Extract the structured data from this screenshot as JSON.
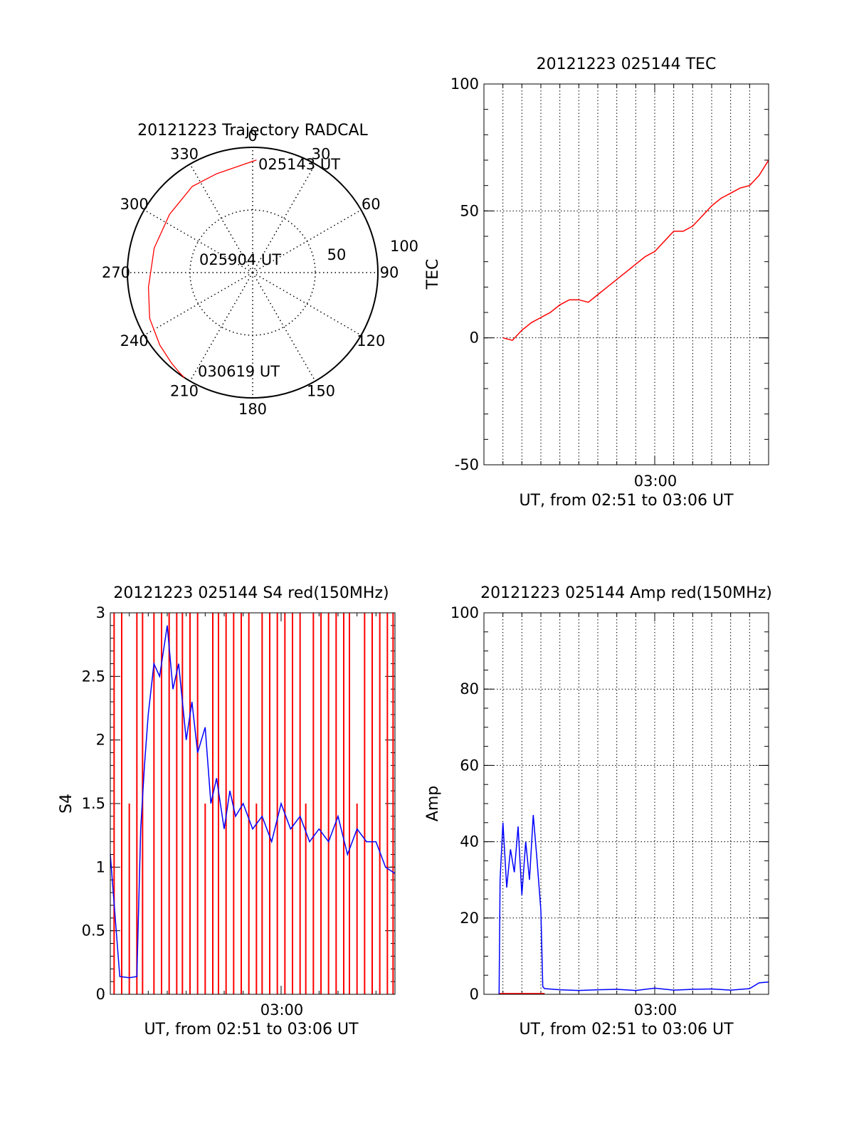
{
  "chart_data": [
    {
      "id": "trajectory",
      "type": "polar",
      "title": "20121223 Trajectory RADCAL",
      "angle_labels": [
        "0",
        "30",
        "60",
        "90",
        "120",
        "150",
        "180",
        "210",
        "240",
        "270",
        "300",
        "330"
      ],
      "radial_labels": [
        "50",
        "100"
      ],
      "r_max": 100,
      "series": [
        {
          "color": "#ff0000",
          "azimuth_deg": [
            2,
            340,
            325,
            305,
            284,
            262,
            246,
            232,
            222,
            216,
            213
          ],
          "radius": [
            90,
            84,
            84,
            81,
            81,
            84,
            90,
            94,
            97,
            99,
            100
          ]
        }
      ],
      "annotations": [
        {
          "text": "025143 UT",
          "at": "start"
        },
        {
          "text": "025904 UT",
          "at": "center"
        },
        {
          "text": "030619 UT",
          "at": "end"
        }
      ]
    },
    {
      "id": "tec",
      "type": "line",
      "title": "20121223 025144 TEC",
      "ylabel": "TEC",
      "xlabel": "UT, from 02:51 to 03:06 UT",
      "x_tick_label": "03:00",
      "ylim": [
        -50,
        100
      ],
      "y_ticks": [
        -50,
        0,
        50,
        100
      ],
      "grid": true,
      "series": [
        {
          "color": "#ff0000",
          "x_minutes": [
            1.0,
            1.5,
            2.0,
            2.5,
            3.0,
            3.5,
            4.0,
            4.5,
            5.0,
            5.5,
            6.0,
            6.5,
            7.0,
            7.5,
            8.0,
            8.5,
            9.0,
            9.5,
            10.0,
            10.5,
            11.0,
            11.5,
            12.0,
            12.5,
            13.0,
            13.5,
            14.0,
            14.5,
            15.0
          ],
          "values": [
            0,
            -1,
            3,
            6,
            8,
            10,
            13,
            15,
            15,
            14,
            17,
            20,
            23,
            26,
            29,
            32,
            34,
            38,
            42,
            42,
            44,
            48,
            52,
            55,
            57,
            59,
            60,
            64,
            70
          ]
        }
      ]
    },
    {
      "id": "s4",
      "type": "line",
      "title": "20121223 025144 S4 red(150MHz)",
      "ylabel": "S4",
      "xlabel": "UT, from 02:51 to 03:06 UT",
      "x_tick_label": "03:00",
      "ylim": [
        0,
        3
      ],
      "y_ticks": [
        "0",
        "0.5",
        "1",
        "1.5",
        "2",
        "2.5",
        "3"
      ],
      "series": [
        {
          "color": "#ff0000",
          "note_style": "dense vertical spikes",
          "x_minutes": [
            0.2,
            0.6,
            1.0,
            1.4,
            1.7,
            2.3,
            2.7,
            3.1,
            3.5,
            3.8,
            4.2,
            4.6,
            5.0,
            5.4,
            5.7,
            6.1,
            6.5,
            6.9,
            7.3,
            7.7,
            8.0,
            8.4,
            8.8,
            9.2,
            9.6,
            10.0,
            10.3,
            10.7,
            11.1,
            11.5,
            11.9,
            12.3,
            12.6,
            13.0,
            13.4,
            13.8,
            14.2,
            14.6,
            14.9
          ],
          "values": [
            3,
            3,
            1.5,
            3,
            3,
            3,
            3,
            3,
            3,
            3,
            3,
            3,
            1.5,
            3,
            3,
            3,
            3,
            3,
            3,
            1.5,
            3,
            3,
            3,
            3,
            3,
            3,
            1.5,
            3,
            3,
            3,
            3,
            3,
            3,
            1.5,
            3,
            3,
            3,
            3,
            3
          ]
        },
        {
          "color": "#0000ff",
          "x_minutes": [
            0.0,
            0.5,
            1.0,
            1.4,
            1.6,
            1.8,
            2.0,
            2.3,
            2.6,
            3.0,
            3.3,
            3.6,
            4.0,
            4.3,
            4.6,
            5.0,
            5.3,
            5.6,
            6.0,
            6.3,
            6.6,
            7.0,
            7.5,
            8.0,
            8.5,
            9.0,
            9.5,
            10.0,
            10.5,
            11.0,
            11.5,
            12.0,
            12.5,
            13.0,
            13.5,
            14.0,
            14.5,
            15.0
          ],
          "values": [
            1.1,
            0.14,
            0.13,
            0.14,
            1.3,
            1.8,
            2.2,
            2.6,
            2.5,
            2.9,
            2.4,
            2.6,
            2.0,
            2.3,
            1.9,
            2.1,
            1.5,
            1.7,
            1.3,
            1.6,
            1.4,
            1.5,
            1.3,
            1.4,
            1.2,
            1.5,
            1.3,
            1.4,
            1.2,
            1.3,
            1.2,
            1.4,
            1.1,
            1.3,
            1.2,
            1.2,
            1.0,
            0.95
          ]
        }
      ]
    },
    {
      "id": "amp",
      "type": "line",
      "title": "20121223 025144 Amp red(150MHz)",
      "ylabel": "Amp",
      "xlabel": "UT, from 02:51 to 03:06 UT",
      "x_tick_label": "03:00",
      "ylim": [
        0,
        100
      ],
      "y_ticks": [
        0,
        20,
        40,
        60,
        80,
        100
      ],
      "grid": true,
      "series": [
        {
          "color": "#0000ff",
          "x_minutes": [
            0.8,
            0.85,
            1.0,
            1.2,
            1.4,
            1.6,
            1.8,
            2.0,
            2.2,
            2.4,
            2.6,
            2.8,
            3.0,
            3.1,
            3.2,
            4.0,
            5.0,
            6.0,
            7.0,
            8.0,
            9.0,
            10.0,
            11.0,
            12.0,
            13.0,
            14.0,
            14.5,
            15.0
          ],
          "values": [
            0,
            30,
            45,
            28,
            38,
            32,
            44,
            26,
            40,
            30,
            47,
            35,
            22,
            2,
            1.5,
            1.2,
            1.0,
            1.2,
            1.3,
            1.0,
            1.6,
            1.1,
            1.3,
            1.4,
            1.1,
            1.5,
            3.0,
            3.2
          ]
        },
        {
          "color": "#ff0000",
          "x_minutes": [
            0.8,
            3.2
          ],
          "values": [
            0.2,
            0.2
          ]
        }
      ]
    }
  ]
}
